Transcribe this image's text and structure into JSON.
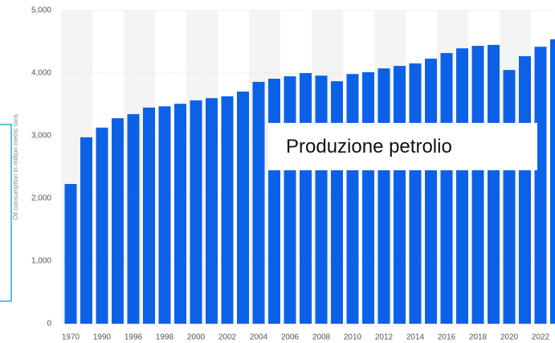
{
  "chart_data": {
    "type": "bar",
    "y_label": "Oil consumption in million metric tons",
    "categories": [
      "1970",
      null,
      "1990",
      null,
      "1996",
      null,
      "1998",
      null,
      "2000",
      null,
      "2002",
      null,
      "2004",
      null,
      "2006",
      null,
      "2008",
      null,
      "2010",
      null,
      "2012",
      null,
      "2014",
      null,
      "2016",
      null,
      "2018",
      null,
      "2020",
      null,
      "2022",
      null
    ],
    "values": [
      2230,
      2975,
      3130,
      3280,
      3345,
      3450,
      3470,
      3510,
      3565,
      3600,
      3630,
      3705,
      3860,
      3910,
      3950,
      4000,
      3960,
      3870,
      3985,
      4015,
      4075,
      4115,
      4155,
      4230,
      4320,
      4395,
      4435,
      4450,
      4050,
      4270,
      4420,
      4540
    ],
    "color": "#0b62e6",
    "ylim": [
      0,
      5000
    ],
    "yticks": [
      0,
      {
        "value": 1000,
        "label": "1,000"
      },
      {
        "value": 2000,
        "label": "2,000"
      },
      {
        "value": 3000,
        "label": "3,000"
      },
      {
        "value": 4000,
        "label": "4,000"
      },
      {
        "value": 5000,
        "label": "5,000"
      }
    ],
    "grid": true
  },
  "overlay": {
    "text": "Produzione petrolio"
  }
}
